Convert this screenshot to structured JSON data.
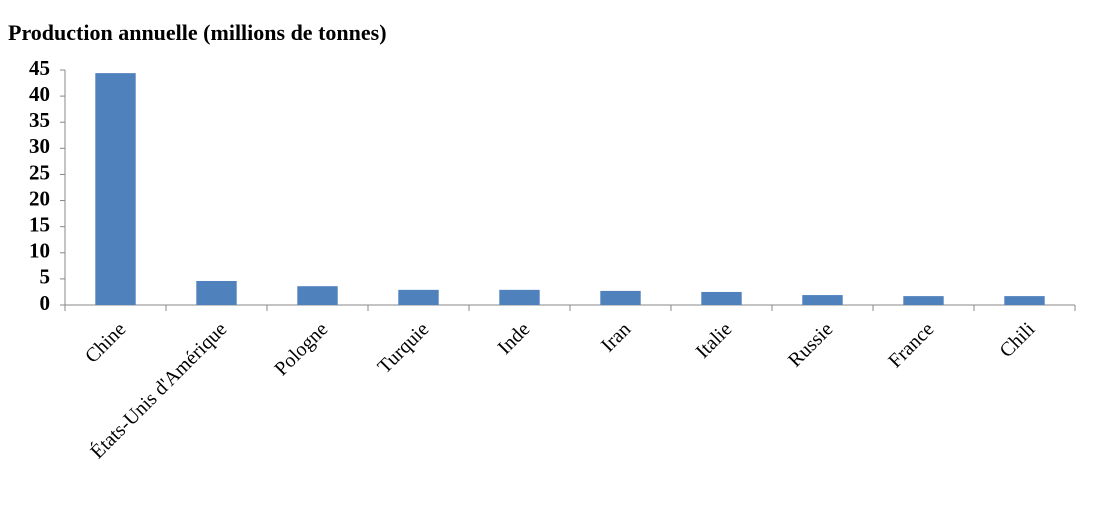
{
  "chart_data": {
    "type": "bar",
    "title": "Production annuelle (millions de tonnes)",
    "categories": [
      "Chine",
      "États-Unis d'Amérique",
      "Pologne",
      "Turquie",
      "Inde",
      "Iran",
      "Italie",
      "Russie",
      "France",
      "Chili"
    ],
    "values": [
      44.4,
      4.6,
      3.6,
      2.9,
      2.9,
      2.7,
      2.5,
      1.9,
      1.7,
      1.7
    ],
    "color": "#4f81bd",
    "ylim": [
      0,
      45
    ],
    "yticks": [
      0,
      5,
      10,
      15,
      20,
      25,
      30,
      35,
      40,
      45
    ],
    "grid": false
  }
}
